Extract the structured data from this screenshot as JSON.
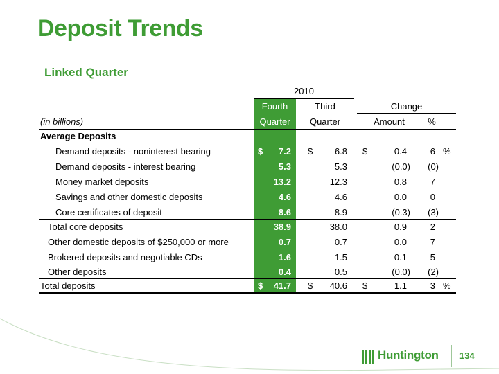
{
  "title": "Deposit Trends",
  "subtitle": "Linked Quarter",
  "table": {
    "year_header": "2010",
    "col_fourth_1": "Fourth",
    "col_fourth_2": "Quarter",
    "col_third_1": "Third",
    "col_third_2": "Quarter",
    "col_change": "Change",
    "col_amount": "Amount",
    "col_pct": "%",
    "units_label": "(in billions)",
    "section_label": "Average Deposits",
    "rows": [
      {
        "label": "Demand deposits - noninterest bearing",
        "fourth_prefix": "$",
        "fourth": "7.2",
        "third_prefix": "$",
        "third": "6.8",
        "amount_prefix": "$",
        "amount": "0.4",
        "pct": "6",
        "pct_suffix": "%"
      },
      {
        "label": "Demand deposits - interest bearing",
        "fourth": "5.3",
        "third": "5.3",
        "amount": "(0.0)",
        "pct": "(0)"
      },
      {
        "label": "Money market deposits",
        "fourth": "13.2",
        "third": "12.3",
        "amount": "0.8",
        "pct": "7"
      },
      {
        "label": "Savings and other domestic deposits",
        "fourth": "4.6",
        "third": "4.6",
        "amount": "0.0",
        "pct": "0"
      },
      {
        "label": "Core certificates of deposit",
        "fourth": "8.6",
        "third": "8.9",
        "amount": "(0.3)",
        "pct": "(3)"
      },
      {
        "label": "Total core deposits",
        "fourth": "38.9",
        "third": "38.0",
        "amount": "0.9",
        "pct": "2"
      },
      {
        "label": "Other domestic deposits of $250,000 or more",
        "fourth": "0.7",
        "third": "0.7",
        "amount": "0.0",
        "pct": "7"
      },
      {
        "label": "Brokered deposits and negotiable CDs",
        "fourth": "1.6",
        "third": "1.5",
        "amount": "0.1",
        "pct": "5"
      },
      {
        "label": "Other deposits",
        "fourth": "0.4",
        "third": "0.5",
        "amount": "(0.0)",
        "pct": "(2)"
      },
      {
        "label": "Total deposits",
        "fourth_prefix": "$",
        "fourth": "41.7",
        "third_prefix": "$",
        "third": "40.6",
        "amount_prefix": "$",
        "amount": "1.1",
        "pct": "3",
        "pct_suffix": "%"
      }
    ]
  },
  "footer": {
    "logo_text": "Huntington",
    "page_number": "134"
  },
  "colors": {
    "brand_green": "#3f9c35"
  }
}
